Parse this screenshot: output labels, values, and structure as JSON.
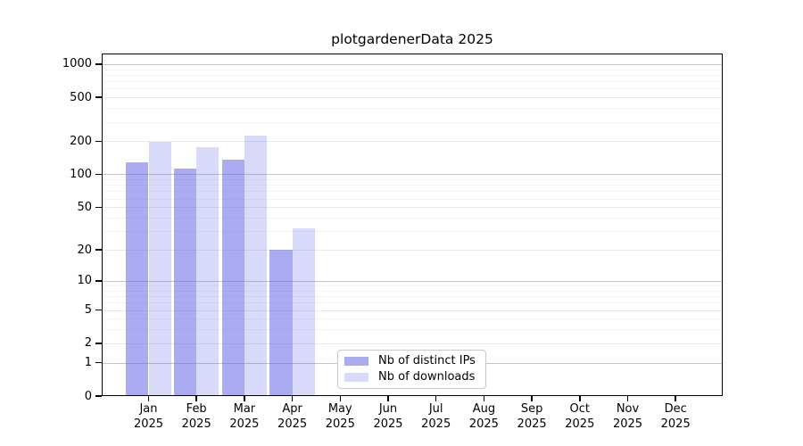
{
  "title": "plotgardenerData 2025",
  "chart_data": {
    "type": "bar",
    "title": "plotgardenerData 2025",
    "categories": [
      {
        "month": "Jan",
        "year": "2025"
      },
      {
        "month": "Feb",
        "year": "2025"
      },
      {
        "month": "Mar",
        "year": "2025"
      },
      {
        "month": "Apr",
        "year": "2025"
      },
      {
        "month": "May",
        "year": "2025"
      },
      {
        "month": "Jun",
        "year": "2025"
      },
      {
        "month": "Jul",
        "year": "2025"
      },
      {
        "month": "Aug",
        "year": "2025"
      },
      {
        "month": "Sep",
        "year": "2025"
      },
      {
        "month": "Oct",
        "year": "2025"
      },
      {
        "month": "Nov",
        "year": "2025"
      },
      {
        "month": "Dec",
        "year": "2025"
      }
    ],
    "series": [
      {
        "name": "Nb of distinct IPs",
        "color": "#6666E8",
        "alpha": 0.55,
        "values": [
          128,
          112,
          137,
          20,
          null,
          null,
          null,
          null,
          null,
          null,
          null,
          null
        ]
      },
      {
        "name": "Nb of downloads",
        "color": "#6666E8",
        "alpha": 0.25,
        "values": [
          197,
          177,
          227,
          32,
          null,
          null,
          null,
          null,
          null,
          null,
          null,
          null
        ]
      }
    ],
    "y_axis": {
      "scale": "log1p",
      "ticks": [
        0,
        1,
        2,
        5,
        10,
        20,
        50,
        100,
        200,
        500,
        1000
      ],
      "decade_ticks": [
        1,
        10,
        100,
        1000
      ]
    },
    "grid": {
      "decade_color": "#c4c4c4",
      "labeled_color": "#e8e8e8",
      "minor_color": "#f3f3f3"
    },
    "legend_position": "inside-bottom-center"
  }
}
